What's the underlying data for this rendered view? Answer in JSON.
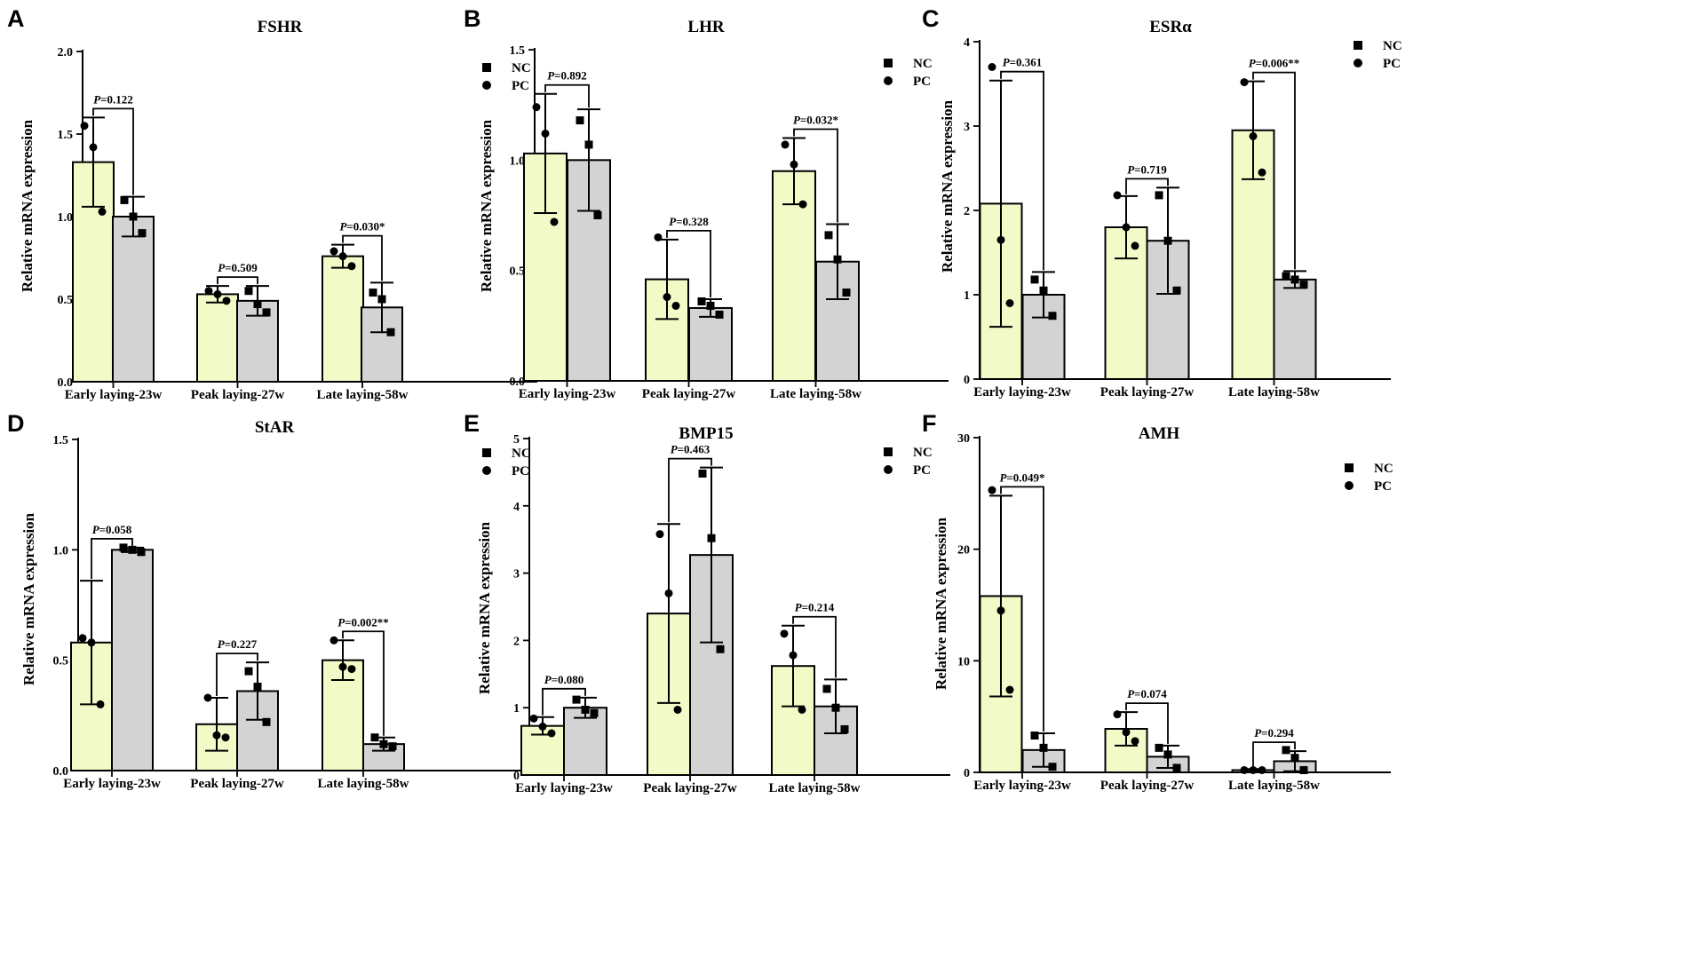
{
  "colors": {
    "nc_fill": "#f2fac8",
    "pc_fill": "#d3d3d3",
    "ink": "#000000"
  },
  "chart_data": [
    {
      "panel": "A",
      "title": "FSHR",
      "type": "bar",
      "ylabel": "Relative mRNA expression",
      "categories": [
        "Early laying-23w",
        "Peak laying-27w",
        "Late laying-58w"
      ],
      "ylim": [
        0,
        2.0
      ],
      "ticks": [
        0.0,
        0.5,
        1.0,
        1.5,
        2.0
      ],
      "tick_labels": [
        "0.0",
        "0.5",
        "1.0",
        "1.5",
        "2.0"
      ],
      "legend": [
        "NC",
        "PC"
      ],
      "series": [
        {
          "name": "NC",
          "values": [
            1.33,
            0.53,
            0.76
          ],
          "err": [
            0.27,
            0.05,
            0.07
          ],
          "points": [
            [
              1.55,
              1.42,
              1.03
            ],
            [
              0.55,
              0.53,
              0.49
            ],
            [
              0.79,
              0.76,
              0.7
            ]
          ]
        },
        {
          "name": "PC",
          "values": [
            1.0,
            0.49,
            0.45
          ],
          "err": [
            0.12,
            0.09,
            0.15
          ],
          "points": [
            [
              1.1,
              1.0,
              0.9
            ],
            [
              0.55,
              0.47,
              0.42
            ],
            [
              0.54,
              0.5,
              0.3
            ]
          ]
        }
      ],
      "annotations": [
        {
          "p": "P",
          "text": "=0.122"
        },
        {
          "p": "P",
          "text": "=0.509"
        },
        {
          "p": "P",
          "text": "=0.030*"
        }
      ]
    },
    {
      "panel": "B",
      "title": "LHR",
      "type": "bar",
      "ylabel": "Relative mRNA expression",
      "categories": [
        "Early laying-23w",
        "Peak laying-27w",
        "Late laying-58w"
      ],
      "ylim": [
        0,
        1.5
      ],
      "ticks": [
        0.0,
        0.5,
        1.0,
        1.5
      ],
      "tick_labels": [
        "0.0",
        "0.5",
        "1.0",
        "1.5"
      ],
      "legend": [
        "NC",
        "PC"
      ],
      "series": [
        {
          "name": "NC",
          "values": [
            1.03,
            0.46,
            0.95
          ],
          "err": [
            0.27,
            0.18,
            0.15
          ],
          "points": [
            [
              1.24,
              1.12,
              0.72
            ],
            [
              0.65,
              0.38,
              0.34
            ],
            [
              1.07,
              0.98,
              0.8
            ]
          ]
        },
        {
          "name": "PC",
          "values": [
            1.0,
            0.33,
            0.54
          ],
          "err": [
            0.23,
            0.04,
            0.17
          ],
          "points": [
            [
              1.18,
              1.07,
              0.75
            ],
            [
              0.36,
              0.34,
              0.3
            ],
            [
              0.66,
              0.55,
              0.4
            ]
          ]
        }
      ],
      "annotations": [
        {
          "p": "P",
          "text": "=0.892"
        },
        {
          "p": "P",
          "text": "=0.328"
        },
        {
          "p": "P",
          "text": "=0.032*"
        }
      ]
    },
    {
      "panel": "C",
      "title": "ESRα",
      "type": "bar",
      "ylabel": "Relative mRNA expression",
      "categories": [
        "Early laying-23w",
        "Peak laying-27w",
        "Late laying-58w"
      ],
      "ylim": [
        0,
        4
      ],
      "ticks": [
        0,
        1,
        2,
        3,
        4
      ],
      "tick_labels": [
        "0",
        "1",
        "2",
        "3",
        "4"
      ],
      "legend": [
        "NC",
        "PC"
      ],
      "series": [
        {
          "name": "NC",
          "values": [
            2.08,
            1.8,
            2.95
          ],
          "err": [
            1.46,
            0.37,
            0.58
          ],
          "points": [
            [
              3.7,
              1.65,
              0.9
            ],
            [
              2.18,
              1.8,
              1.58
            ],
            [
              3.52,
              2.88,
              2.45
            ]
          ]
        },
        {
          "name": "PC",
          "values": [
            1.0,
            1.64,
            1.18
          ],
          "err": [
            0.27,
            0.63,
            0.1
          ],
          "points": [
            [
              1.18,
              1.05,
              0.75
            ],
            [
              2.18,
              1.64,
              1.05
            ],
            [
              1.22,
              1.18,
              1.12
            ]
          ]
        }
      ],
      "annotations": [
        {
          "p": "P",
          "text": "=0.361"
        },
        {
          "p": "P",
          "text": "=0.719"
        },
        {
          "p": "P",
          "text": "=0.006**"
        }
      ]
    },
    {
      "panel": "D",
      "title": "StAR",
      "type": "bar",
      "ylabel": "Relative mRNA expression",
      "categories": [
        "Early laying-23w",
        "Peak laying-27w",
        "Late laying-58w"
      ],
      "ylim": [
        0,
        1.5
      ],
      "ticks": [
        0.0,
        0.5,
        1.0,
        1.5
      ],
      "tick_labels": [
        "0.0",
        "0.5",
        "1.0",
        "1.5"
      ],
      "legend": [
        "NC",
        "PC"
      ],
      "series": [
        {
          "name": "NC",
          "values": [
            0.58,
            0.21,
            0.5
          ],
          "err": [
            0.28,
            0.12,
            0.09
          ],
          "points": [
            [
              0.6,
              0.58,
              0.3
            ],
            [
              0.33,
              0.16,
              0.15
            ],
            [
              0.59,
              0.47,
              0.46
            ]
          ]
        },
        {
          "name": "PC",
          "values": [
            1.0,
            0.36,
            0.12
          ],
          "err": [
            0.01,
            0.13,
            0.03
          ],
          "points": [
            [
              1.01,
              1.0,
              0.99
            ],
            [
              0.45,
              0.38,
              0.22
            ],
            [
              0.15,
              0.12,
              0.11
            ]
          ]
        }
      ],
      "annotations": [
        {
          "p": "P",
          "text": "=0.058"
        },
        {
          "p": "P",
          "text": "=0.227"
        },
        {
          "p": "P",
          "text": "=0.002**"
        }
      ]
    },
    {
      "panel": "E",
      "title": "BMP15",
      "type": "bar",
      "ylabel": "Relative mRNA expression",
      "categories": [
        "Early laying-23w",
        "Peak laying-27w",
        "Late laying-58w"
      ],
      "ylim": [
        0,
        5
      ],
      "ticks": [
        0,
        1,
        2,
        3,
        4,
        5
      ],
      "tick_labels": [
        "0",
        "1",
        "2",
        "3",
        "4",
        "5"
      ],
      "legend": [
        "NC",
        "PC"
      ],
      "series": [
        {
          "name": "NC",
          "values": [
            0.73,
            2.4,
            1.62
          ],
          "err": [
            0.13,
            1.33,
            0.6
          ],
          "points": [
            [
              0.84,
              0.72,
              0.62
            ],
            [
              3.58,
              2.7,
              0.97
            ],
            [
              2.1,
              1.78,
              0.97
            ]
          ]
        },
        {
          "name": "PC",
          "values": [
            1.0,
            3.27,
            1.02
          ],
          "err": [
            0.15,
            1.3,
            0.4
          ],
          "points": [
            [
              1.12,
              0.97,
              0.92
            ],
            [
              4.48,
              3.52,
              1.87
            ],
            [
              1.28,
              1.0,
              0.68
            ]
          ]
        }
      ],
      "annotations": [
        {
          "p": "P",
          "text": "=0.080"
        },
        {
          "p": "P",
          "text": "=0.463"
        },
        {
          "p": "P",
          "text": "=0.214"
        }
      ]
    },
    {
      "panel": "F",
      "title": "AMH",
      "type": "bar",
      "ylabel": "Relative  mRNA expression",
      "categories": [
        "Early laying-23w",
        "Peak laying-27w",
        "Late laying-58w"
      ],
      "ylim": [
        0,
        30
      ],
      "ticks": [
        0,
        10,
        20,
        30
      ],
      "tick_labels": [
        "0",
        "10",
        "20",
        "30"
      ],
      "legend": [
        "NC",
        "PC"
      ],
      "series": [
        {
          "name": "NC",
          "values": [
            15.8,
            3.9,
            0.2
          ],
          "err": [
            9.0,
            1.5,
            0.1
          ],
          "points": [
            [
              25.3,
              14.5,
              7.4
            ],
            [
              5.2,
              3.6,
              2.8
            ],
            [
              0.2,
              0.2,
              0.2
            ]
          ]
        },
        {
          "name": "PC",
          "values": [
            2.0,
            1.4,
            1.0
          ],
          "err": [
            1.5,
            1.0,
            0.9
          ],
          "points": [
            [
              3.3,
              2.2,
              0.5
            ],
            [
              2.2,
              1.6,
              0.4
            ],
            [
              2.0,
              1.3,
              0.2
            ]
          ]
        }
      ],
      "annotations": [
        {
          "p": "P",
          "text": "=0.049*"
        },
        {
          "p": "P",
          "text": "=0.074"
        },
        {
          "p": "P",
          "text": "=0.294"
        }
      ]
    }
  ]
}
